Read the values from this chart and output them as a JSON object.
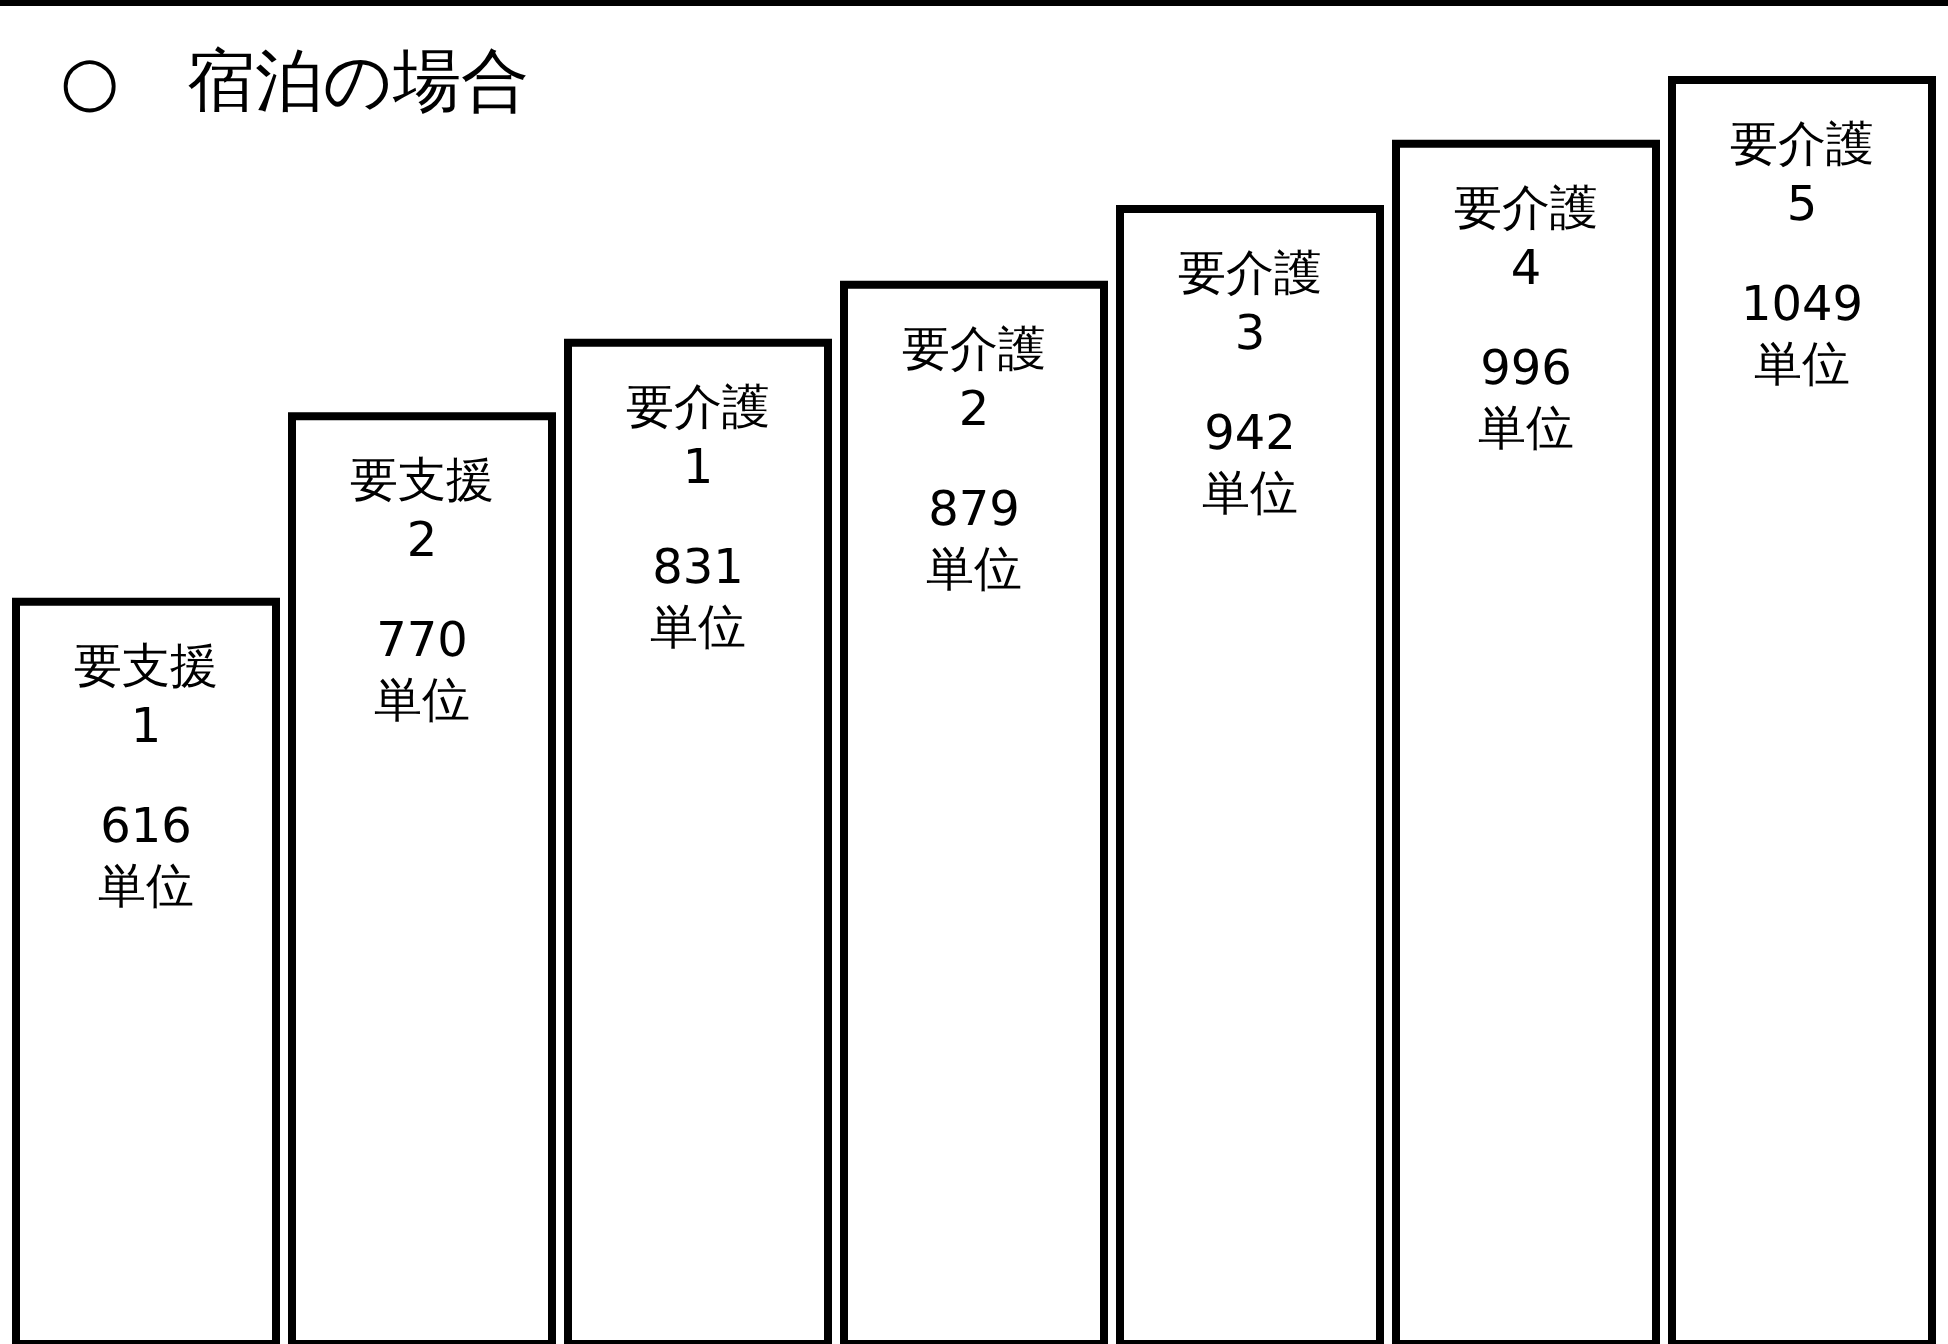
{
  "chart_data": {
    "type": "bar",
    "title": "○　宿泊の場合",
    "categories": [
      "要支援 1",
      "要支援 2",
      "要介護 1",
      "要介護 2",
      "要介護 3",
      "要介護 4",
      "要介護 5"
    ],
    "values": [
      616,
      770,
      831,
      879,
      942,
      996,
      1049
    ],
    "value_labels": [
      "616 単位",
      "770 単位",
      "831 単位",
      "879 単位",
      "942 単位",
      "996 単位",
      "1049 単位"
    ],
    "color": "#ffffff",
    "legend": false,
    "grid": false
  }
}
